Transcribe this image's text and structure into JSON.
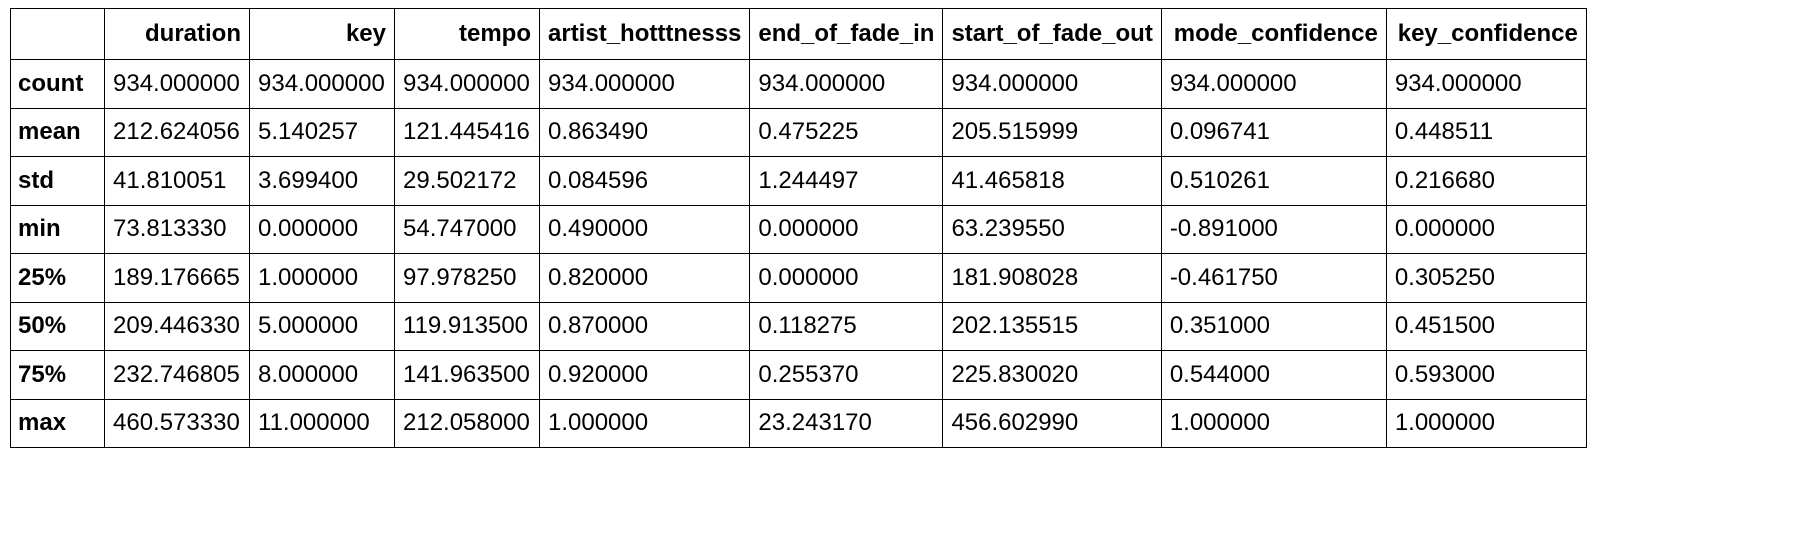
{
  "table": {
    "columns": [
      "",
      "duration",
      "key",
      "tempo",
      "artist_hotttnesss",
      "end_of_fade_in",
      "start_of_fade_out",
      "mode_confidence",
      "key_confidence"
    ],
    "rows": [
      {
        "label": "count",
        "values": [
          "934.000000",
          "934.000000",
          "934.000000",
          "934.000000",
          "934.000000",
          "934.000000",
          "934.000000",
          "934.000000"
        ]
      },
      {
        "label": "mean",
        "values": [
          "212.624056",
          "5.140257",
          "121.445416",
          "0.863490",
          "0.475225",
          "205.515999",
          "0.096741",
          "0.448511"
        ]
      },
      {
        "label": "std",
        "values": [
          "41.810051",
          "3.699400",
          "29.502172",
          "0.084596",
          "1.244497",
          "41.465818",
          "0.510261",
          "0.216680"
        ]
      },
      {
        "label": "min",
        "values": [
          "73.813330",
          "0.000000",
          "54.747000",
          "0.490000",
          "0.000000",
          "63.239550",
          "-0.891000",
          "0.000000"
        ]
      },
      {
        "label": "25%",
        "values": [
          "189.176665",
          "1.000000",
          "97.978250",
          "0.820000",
          "0.000000",
          "181.908028",
          "-0.461750",
          "0.305250"
        ]
      },
      {
        "label": "50%",
        "values": [
          "209.446330",
          "5.000000",
          "119.913500",
          "0.870000",
          "0.118275",
          "202.135515",
          "0.351000",
          "0.451500"
        ]
      },
      {
        "label": "75%",
        "values": [
          "232.746805",
          "8.000000",
          "141.963500",
          "0.920000",
          "0.255370",
          "225.830020",
          "0.544000",
          "0.593000"
        ]
      },
      {
        "label": "max",
        "values": [
          "460.573330",
          "11.000000",
          "212.058000",
          "1.000000",
          "23.243170",
          "456.602990",
          "1.000000",
          "1.000000"
        ]
      }
    ]
  }
}
